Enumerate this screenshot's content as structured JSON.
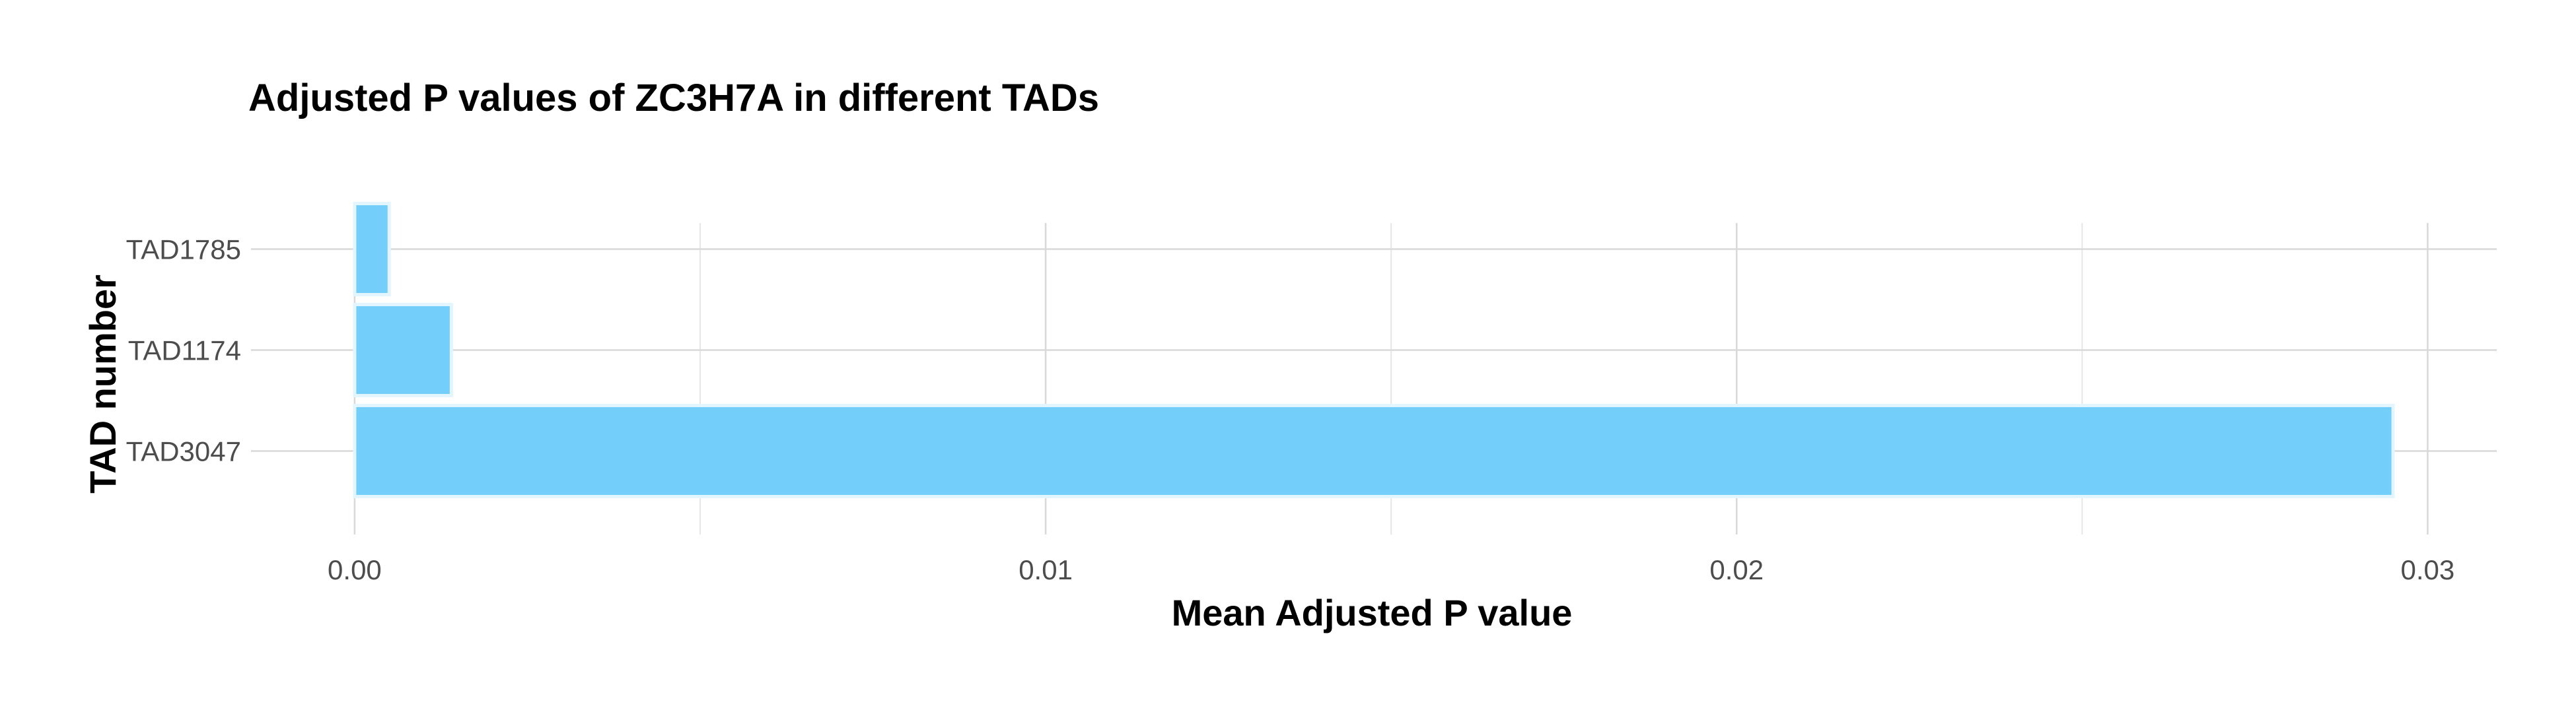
{
  "chart_data": {
    "type": "bar",
    "orientation": "horizontal",
    "title": "Adjusted P values of ZC3H7A in different TADs",
    "xlabel": "Mean Adjusted P value",
    "ylabel": "TAD number",
    "categories": [
      "TAD3047",
      "TAD1174",
      "TAD1785"
    ],
    "values": [
      0.0295,
      0.0014,
      0.0005
    ],
    "xlim": [
      -0.0015,
      0.031
    ],
    "xticks": [
      0.0,
      0.01,
      0.02,
      0.03
    ],
    "xtick_labels": [
      "0.00",
      "0.01",
      "0.02",
      "0.03"
    ],
    "grid": true,
    "legend": "none",
    "bar_color": "#74CEFA",
    "bar_border_color": "#E3F5FE"
  }
}
